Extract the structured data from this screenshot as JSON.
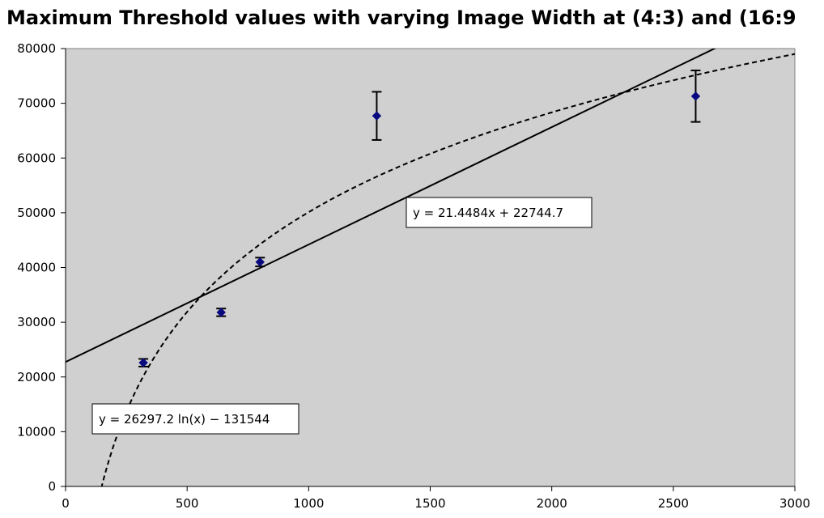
{
  "chart_data": {
    "type": "scatter",
    "title": "Maximum Threshold values with varying Image Width at (4:3) and (16:9",
    "xlabel": "",
    "ylabel": "",
    "xlim": [
      0,
      3000
    ],
    "ylim": [
      0,
      80000
    ],
    "x_ticks": [
      "0",
      "500",
      "1000",
      "1500",
      "2000",
      "2500",
      "3000"
    ],
    "y_ticks": [
      "0",
      "10000",
      "20000",
      "30000",
      "40000",
      "50000",
      "60000",
      "70000",
      "80000"
    ],
    "grid": false,
    "plot_background": "#d0d0d0",
    "marker_color": "#0a0a80",
    "series": [
      {
        "x": [
          320,
          640,
          800,
          1280,
          2592
        ],
        "y": [
          22600,
          31800,
          41000,
          67700,
          71300
        ],
        "error": [
          700,
          700,
          800,
          4400,
          4700
        ]
      }
    ],
    "trendlines": [
      {
        "kind": "linear",
        "slope": 21.4484,
        "intercept": 22744.7,
        "style": "solid",
        "label": "y = 21.4484x + 22744.7"
      },
      {
        "kind": "logarithmic",
        "a": 26297.2,
        "b": -131544,
        "style": "dashed",
        "label": "y = 26297.2 ln(x) − 131544"
      }
    ]
  }
}
